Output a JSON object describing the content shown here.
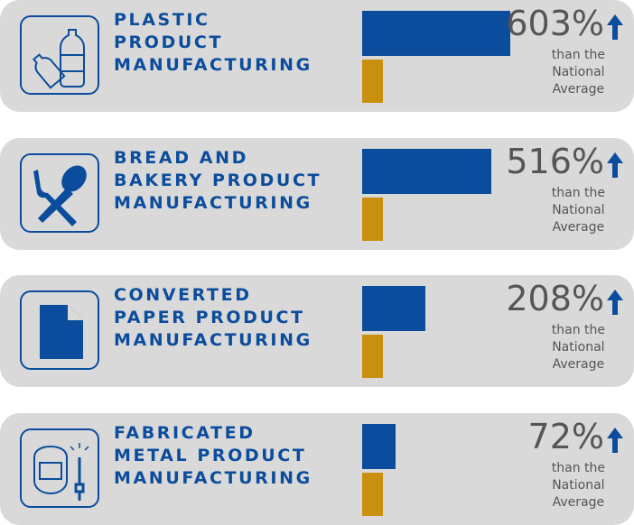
{
  "chart_data": {
    "type": "bar",
    "categories": [
      [
        "PLASTIC",
        "PRODUCT",
        "MANUFACTURING"
      ],
      [
        "BREAD AND",
        "BAKERY PRODUCT",
        "MANUFACTURING"
      ],
      [
        "CONVERTED",
        "PAPER PRODUCT",
        "MANUFACTURING"
      ],
      [
        "FABRICATED",
        "METAL PRODUCT",
        "MANUFACTURING"
      ]
    ],
    "values": [
      603,
      516,
      208,
      72
    ],
    "value_labels": [
      "603%",
      "516%",
      "208%",
      "72%"
    ],
    "comparison": [
      "than the",
      "National",
      "Average"
    ],
    "color": "#0b4c9c",
    "baseline_color": "#c98f0e"
  }
}
